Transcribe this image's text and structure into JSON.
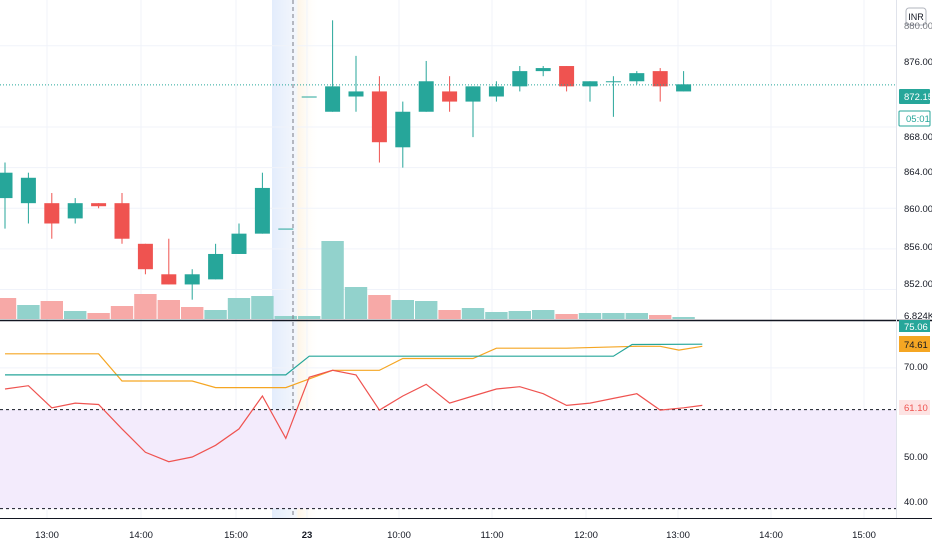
{
  "currency_badge": "INR",
  "price_axis": {
    "top_label": "880.00",
    "ticks": [
      "876.00",
      "868.00",
      "864.00",
      "860.00",
      "856.00",
      "852.00"
    ],
    "last_price": "872.15",
    "countdown": "05:01",
    "volume_label": "6.824K"
  },
  "indicator_axis": {
    "top_label": "75.06",
    "ticks": [
      "70.00",
      "50.00",
      "40.00"
    ],
    "line_labels": [
      "74.61",
      "61.10"
    ]
  },
  "time_axis": {
    "labels": [
      "13:00",
      "14:00",
      "15:00",
      "23",
      "10:00",
      "11:00",
      "12:00",
      "13:00",
      "14:00",
      "15:00"
    ]
  },
  "colors": {
    "up": "#26a69a",
    "down": "#ef5350",
    "vol_up": "#92d2cc",
    "vol_down": "#f7a9a7",
    "orange": "#f5a623",
    "band_fill": "#f3ebfc"
  },
  "chart_data": [
    {
      "type": "candlestick",
      "title": "",
      "xlabel": "",
      "ylabel": "",
      "ylim": [
        849.0,
        880.5
      ],
      "x_slots": 36,
      "session_break_slot": 12.5,
      "last_price": 872.15,
      "candles": [
        {
          "slot": 0,
          "open": 861.0,
          "high": 864.5,
          "low": 858.0,
          "close": 863.5
        },
        {
          "slot": 1,
          "open": 860.5,
          "high": 863.5,
          "low": 858.5,
          "close": 863.0
        },
        {
          "slot": 2,
          "open": 860.5,
          "high": 861.5,
          "low": 857.0,
          "close": 858.5
        },
        {
          "slot": 3,
          "open": 859.0,
          "high": 861.0,
          "low": 858.5,
          "close": 860.5
        },
        {
          "slot": 4,
          "open": 860.5,
          "high": 860.5,
          "low": 860.0,
          "close": 860.2
        },
        {
          "slot": 5,
          "open": 860.5,
          "high": 861.5,
          "low": 856.5,
          "close": 857.0
        },
        {
          "slot": 6,
          "open": 856.5,
          "high": 856.5,
          "low": 853.5,
          "close": 854.0
        },
        {
          "slot": 7,
          "open": 853.5,
          "high": 857.0,
          "low": 852.5,
          "close": 852.5
        },
        {
          "slot": 8,
          "open": 852.5,
          "high": 854.0,
          "low": 851.0,
          "close": 853.5
        },
        {
          "slot": 9,
          "open": 853.0,
          "high": 856.5,
          "low": 853.0,
          "close": 855.5
        },
        {
          "slot": 10,
          "open": 855.5,
          "high": 858.5,
          "low": 855.5,
          "close": 857.5
        },
        {
          "slot": 11,
          "open": 857.5,
          "high": 863.5,
          "low": 857.5,
          "close": 862.0
        },
        {
          "slot": 12,
          "open": 858.0,
          "high": 858.0,
          "low": 858.0,
          "close": 858.0
        },
        {
          "slot": 13,
          "open": 871.0,
          "high": 871.0,
          "low": 871.0,
          "close": 871.0
        },
        {
          "slot": 14,
          "open": 869.5,
          "high": 878.5,
          "low": 869.5,
          "close": 872.0
        },
        {
          "slot": 15,
          "open": 871.0,
          "high": 875.0,
          "low": 869.5,
          "close": 871.5
        },
        {
          "slot": 16,
          "open": 871.5,
          "high": 873.0,
          "low": 864.5,
          "close": 866.5
        },
        {
          "slot": 17,
          "open": 866.0,
          "high": 870.5,
          "low": 864.0,
          "close": 869.5
        },
        {
          "slot": 18,
          "open": 869.5,
          "high": 874.5,
          "low": 869.5,
          "close": 872.5
        },
        {
          "slot": 19,
          "open": 871.5,
          "high": 873.0,
          "low": 869.5,
          "close": 870.5
        },
        {
          "slot": 20,
          "open": 870.5,
          "high": 872.0,
          "low": 867.0,
          "close": 872.0
        },
        {
          "slot": 21,
          "open": 871.0,
          "high": 872.5,
          "low": 870.5,
          "close": 872.0
        },
        {
          "slot": 22,
          "open": 872.0,
          "high": 874.0,
          "low": 871.5,
          "close": 873.5
        },
        {
          "slot": 23,
          "open": 873.5,
          "high": 874.0,
          "low": 873.0,
          "close": 873.8
        },
        {
          "slot": 24,
          "open": 874.0,
          "high": 874.0,
          "low": 871.5,
          "close": 872.0
        },
        {
          "slot": 25,
          "open": 872.0,
          "high": 872.5,
          "low": 870.5,
          "close": 872.5
        },
        {
          "slot": 26,
          "open": 872.5,
          "high": 873.0,
          "low": 869.0,
          "close": 872.5
        },
        {
          "slot": 27,
          "open": 872.5,
          "high": 873.5,
          "low": 872.2,
          "close": 873.3
        },
        {
          "slot": 28,
          "open": 873.5,
          "high": 873.8,
          "low": 870.5,
          "close": 872.0
        },
        {
          "slot": 29,
          "open": 871.5,
          "high": 873.5,
          "low": 871.5,
          "close": 872.2
        }
      ]
    },
    {
      "type": "bar",
      "title": "",
      "xlabel": "",
      "ylabel": "",
      "max_volume": 8.0,
      "bars": [
        {
          "slot": 0,
          "value": 2.1,
          "direction": "down"
        },
        {
          "slot": 1,
          "value": 1.4,
          "direction": "up"
        },
        {
          "slot": 2,
          "value": 1.8,
          "direction": "down"
        },
        {
          "slot": 3,
          "value": 0.8,
          "direction": "up"
        },
        {
          "slot": 4,
          "value": 0.6,
          "direction": "down"
        },
        {
          "slot": 5,
          "value": 1.3,
          "direction": "down"
        },
        {
          "slot": 6,
          "value": 2.5,
          "direction": "down"
        },
        {
          "slot": 7,
          "value": 1.9,
          "direction": "down"
        },
        {
          "slot": 8,
          "value": 1.2,
          "direction": "down"
        },
        {
          "slot": 9,
          "value": 0.9,
          "direction": "up"
        },
        {
          "slot": 10,
          "value": 2.1,
          "direction": "up"
        },
        {
          "slot": 11,
          "value": 2.3,
          "direction": "up"
        },
        {
          "slot": 12,
          "value": 0.3,
          "direction": "up"
        },
        {
          "slot": 13,
          "value": 0.3,
          "direction": "up"
        },
        {
          "slot": 14,
          "value": 7.8,
          "direction": "up"
        },
        {
          "slot": 15,
          "value": 3.2,
          "direction": "up"
        },
        {
          "slot": 16,
          "value": 2.4,
          "direction": "down"
        },
        {
          "slot": 17,
          "value": 1.9,
          "direction": "up"
        },
        {
          "slot": 18,
          "value": 1.8,
          "direction": "up"
        },
        {
          "slot": 19,
          "value": 0.9,
          "direction": "down"
        },
        {
          "slot": 20,
          "value": 1.1,
          "direction": "up"
        },
        {
          "slot": 21,
          "value": 0.7,
          "direction": "up"
        },
        {
          "slot": 22,
          "value": 0.8,
          "direction": "up"
        },
        {
          "slot": 23,
          "value": 0.9,
          "direction": "up"
        },
        {
          "slot": 24,
          "value": 0.5,
          "direction": "down"
        },
        {
          "slot": 25,
          "value": 0.6,
          "direction": "up"
        },
        {
          "slot": 26,
          "value": 0.6,
          "direction": "up"
        },
        {
          "slot": 27,
          "value": 0.6,
          "direction": "up"
        },
        {
          "slot": 28,
          "value": 0.4,
          "direction": "down"
        },
        {
          "slot": 29,
          "value": 0.2,
          "direction": "up"
        }
      ]
    },
    {
      "type": "line",
      "title": "",
      "xlabel": "",
      "ylabel": "",
      "ylim": [
        38.0,
        80.0
      ],
      "band": [
        40.0,
        61.1
      ],
      "reference_lines": [
        61.1,
        40.0
      ],
      "series": [
        {
          "color": "#f5a623",
          "points": [
            [
              0,
              73.0
            ],
            [
              4,
              73.0
            ],
            [
              5,
              67.2
            ],
            [
              8,
              67.2
            ],
            [
              9,
              65.8
            ],
            [
              12,
              65.8
            ],
            [
              14,
              69.5
            ],
            [
              16,
              69.5
            ],
            [
              17,
              72.0
            ],
            [
              20,
              72.0
            ],
            [
              21,
              74.2
            ],
            [
              24,
              74.2
            ],
            [
              27,
              74.6
            ],
            [
              28,
              74.6
            ],
            [
              28.8,
              73.8
            ],
            [
              29.8,
              74.61
            ]
          ]
        },
        {
          "color": "#26a69a",
          "points": [
            [
              0,
              68.5
            ],
            [
              12,
              68.5
            ],
            [
              13,
              72.5
            ],
            [
              26,
              72.5
            ],
            [
              26.8,
              75.0
            ],
            [
              29.8,
              75.06
            ]
          ]
        },
        {
          "color": "#ef5350",
          "points": [
            [
              0,
              65.5
            ],
            [
              1,
              66.2
            ],
            [
              2,
              61.5
            ],
            [
              3,
              62.5
            ],
            [
              4,
              62.2
            ],
            [
              5,
              57.0
            ],
            [
              6,
              52.0
            ],
            [
              7,
              50.0
            ],
            [
              8,
              51.0
            ],
            [
              9,
              53.5
            ],
            [
              10,
              57.0
            ],
            [
              11,
              64.0
            ],
            [
              12,
              55.0
            ],
            [
              13,
              68.0
            ],
            [
              14,
              69.5
            ],
            [
              15,
              68.5
            ],
            [
              16,
              61.0
            ],
            [
              17,
              64.0
            ],
            [
              18,
              66.5
            ],
            [
              19,
              62.5
            ],
            [
              20,
              64.0
            ],
            [
              21,
              65.5
            ],
            [
              22,
              66.0
            ],
            [
              23,
              64.5
            ],
            [
              24,
              62.0
            ],
            [
              25,
              62.5
            ],
            [
              26,
              63.5
            ],
            [
              27,
              64.5
            ],
            [
              28,
              61.0
            ],
            [
              29,
              61.5
            ],
            [
              29.8,
              62.0
            ]
          ]
        }
      ]
    }
  ]
}
